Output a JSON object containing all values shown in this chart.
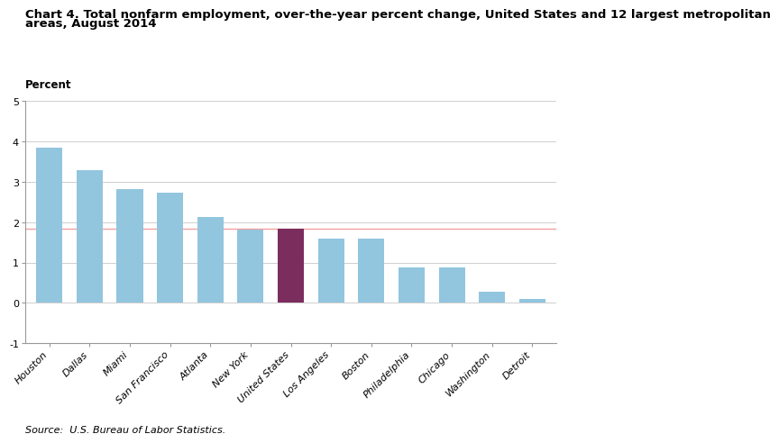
{
  "categories": [
    "Houston",
    "Dallas",
    "Miami",
    "San Francisco",
    "Atlanta",
    "New York",
    "United States",
    "Los Angeles",
    "Boston",
    "Philadelphia",
    "Chicago",
    "Washington",
    "Detroit"
  ],
  "values": [
    3.85,
    3.3,
    2.82,
    2.73,
    2.12,
    1.82,
    1.83,
    1.6,
    1.6,
    0.88,
    0.88,
    0.28,
    0.1
  ],
  "bar_colors": [
    "#92C5DE",
    "#92C5DE",
    "#92C5DE",
    "#92C5DE",
    "#92C5DE",
    "#92C5DE",
    "#7B2D5E",
    "#92C5DE",
    "#92C5DE",
    "#92C5DE",
    "#92C5DE",
    "#92C5DE",
    "#92C5DE"
  ],
  "title_line1": "Chart 4. Total nonfarm employment, over-the-year percent change, United States and 12 largest metropolitan",
  "title_line2": "areas, August 2014",
  "ylabel": "Percent",
  "ylim": [
    -1,
    5
  ],
  "yticks": [
    -1,
    0,
    1,
    2,
    3,
    4,
    5
  ],
  "us_national_line": 1.83,
  "us_national_line_color": "#F4A0A0",
  "grid_color": "#C8C8C8",
  "background_color": "#FFFFFF",
  "source_text": "Source:  U.S. Bureau of Labor Statistics.",
  "title_fontsize": 9.5,
  "tick_fontsize": 8,
  "source_fontsize": 8
}
